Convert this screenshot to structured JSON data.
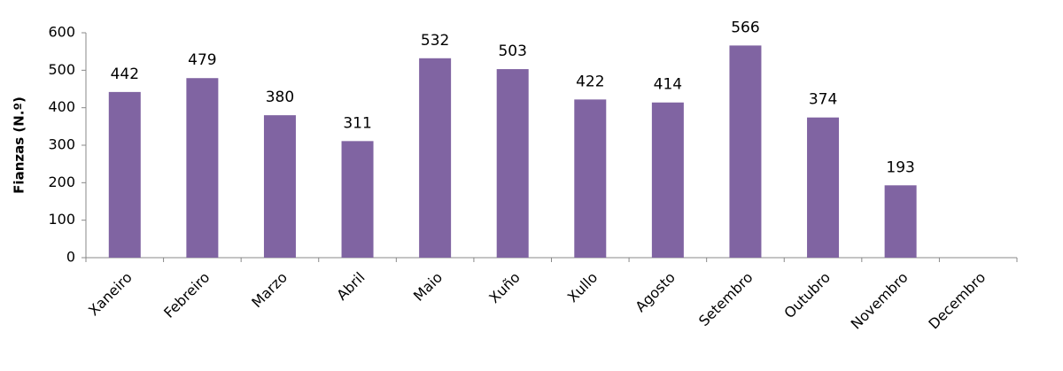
{
  "chart_data": {
    "type": "bar",
    "y_label": "Fianzas (N.º)",
    "categories": [
      "Xaneiro",
      "Febreiro",
      "Marzo",
      "Abril",
      "Maio",
      "Xuño",
      "Xullo",
      "Agosto",
      "Setembro",
      "Outubro",
      "Novembro",
      "Decembro"
    ],
    "values": [
      442,
      479,
      380,
      311,
      532,
      503,
      422,
      414,
      566,
      374,
      193,
      null
    ],
    "color": "#8064a2",
    "ylim": [
      0,
      600
    ],
    "yticks": [
      0,
      100,
      200,
      300,
      400,
      500,
      600
    ],
    "grid": false,
    "data_labels": true
  }
}
